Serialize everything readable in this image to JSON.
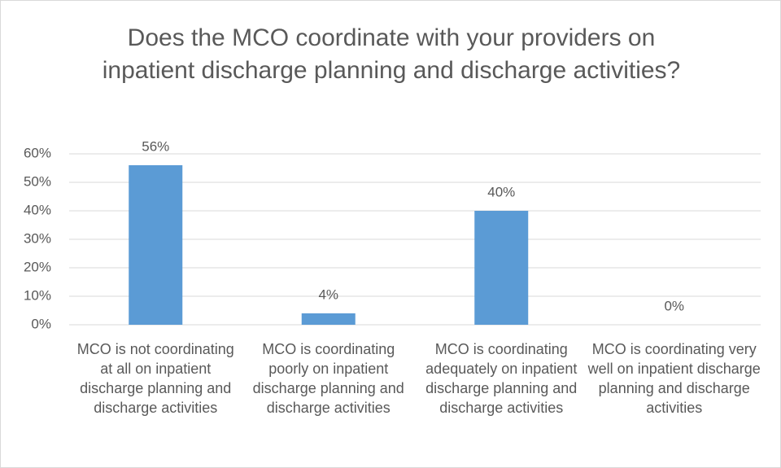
{
  "chart_data": {
    "type": "bar",
    "title": "Does the MCO coordinate with your providers on inpatient discharge planning and discharge activities?",
    "categories": [
      "MCO is not coordinating at all on inpatient discharge planning and discharge activities",
      "MCO is coordinating poorly on inpatient discharge planning and discharge activities",
      "MCO is coordinating adequately on inpatient discharge planning and discharge activities",
      "MCO is coordinating very well on inpatient discharge planning and discharge activities"
    ],
    "values": [
      56,
      4,
      40,
      0
    ],
    "value_labels": [
      "56%",
      "4%",
      "40%",
      "0%"
    ],
    "color": "#5b9bd5",
    "ylim": [
      0,
      60
    ],
    "yticks": [
      {
        "value": 0,
        "label": "0%"
      },
      {
        "value": 10,
        "label": "10%"
      },
      {
        "value": 20,
        "label": "20%"
      },
      {
        "value": 30,
        "label": "30%"
      },
      {
        "value": 40,
        "label": "40%"
      },
      {
        "value": 50,
        "label": "50%"
      },
      {
        "value": 60,
        "label": "60%"
      }
    ],
    "grid": true
  }
}
